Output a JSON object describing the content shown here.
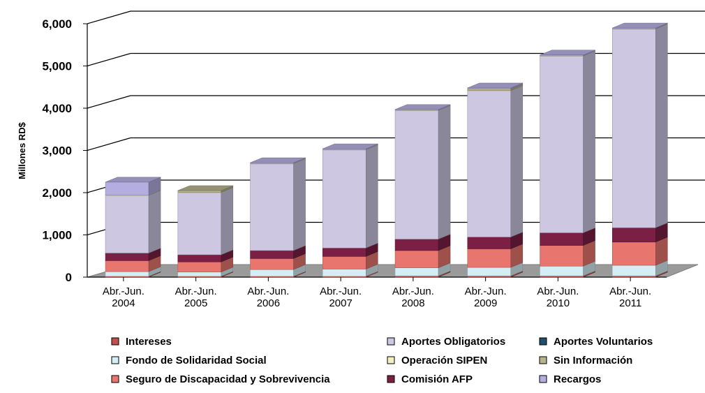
{
  "chart_data": {
    "type": "bar",
    "stacked": true,
    "three_d": true,
    "ylabel": "Millones RD$",
    "xlabel": "",
    "ylim": [
      0,
      6000
    ],
    "y_ticks": [
      "0",
      "1,000",
      "2,000",
      "3,000",
      "4,000",
      "5,000",
      "6,000"
    ],
    "y_tick_values": [
      0,
      1000,
      2000,
      3000,
      4000,
      5000,
      6000
    ],
    "categories": [
      [
        "Abr.-Jun.",
        "2004"
      ],
      [
        "Abr.-Jun.",
        "2005"
      ],
      [
        "Abr.-Jun.",
        "2006"
      ],
      [
        "Abr.-Jun.",
        "2007"
      ],
      [
        "Abr.-Jun.",
        "2008"
      ],
      [
        "Abr.-Jun.",
        "2009"
      ],
      [
        "Abr.-Jun.",
        "2010"
      ],
      [
        "Abr.-Jun.",
        "2011"
      ]
    ],
    "grid": true,
    "legend_position": "bottom",
    "series": [
      {
        "name": "Intereses",
        "color": "#c0504d",
        "values": [
          20,
          20,
          20,
          20,
          30,
          30,
          30,
          30
        ]
      },
      {
        "name": "Fondo de Solidaridad Social",
        "color": "#d5eef6",
        "values": [
          110,
          100,
          160,
          170,
          190,
          200,
          230,
          250
        ]
      },
      {
        "name": "Seguro de Discapacidad y Sobrevivencia",
        "color": "#e8766f",
        "values": [
          260,
          240,
          260,
          300,
          410,
          440,
          490,
          550
        ]
      },
      {
        "name": "Aportes Obligatorios",
        "color": "#cdc7e2",
        "values": [
          1360,
          1470,
          2050,
          2320,
          3040,
          3460,
          4180,
          4700
        ]
      },
      {
        "name": "Operación SIPEN",
        "color": "#f3efc1",
        "values": [
          10,
          10,
          10,
          10,
          10,
          10,
          10,
          10
        ]
      },
      {
        "name": "Comisión AFP",
        "color": "#7b1f45",
        "values": [
          180,
          170,
          190,
          200,
          270,
          280,
          300,
          340
        ]
      },
      {
        "name": "Aportes Voluntarios",
        "color": "#1f4f6b",
        "values": [
          0,
          0,
          0,
          0,
          0,
          0,
          0,
          0
        ]
      },
      {
        "name": "Sin Información",
        "color": "#b7b38d",
        "values": [
          0,
          40,
          0,
          0,
          0,
          40,
          0,
          0
        ]
      },
      {
        "name": "Recargos",
        "color": "#b4aee0",
        "values": [
          310,
          0,
          20,
          20,
          20,
          20,
          20,
          20
        ]
      }
    ],
    "stack_order": [
      "Intereses",
      "Fondo de Solidaridad Social",
      "Seguro de Discapacidad y Sobrevivencia",
      "Comisión AFP",
      "Aportes Voluntarios",
      "Aportes Obligatorios",
      "Operación SIPEN",
      "Sin Información",
      "Recargos"
    ],
    "legend_layout": [
      [
        "Intereses",
        "Aportes Obligatorios",
        "Aportes Voluntarios"
      ],
      [
        "Fondo de Solidaridad Social",
        "Operación SIPEN",
        "Sin Información"
      ],
      [
        "Seguro de Discapacidad y Sobrevivencia",
        "Comisión AFP",
        "Recargos"
      ]
    ]
  }
}
